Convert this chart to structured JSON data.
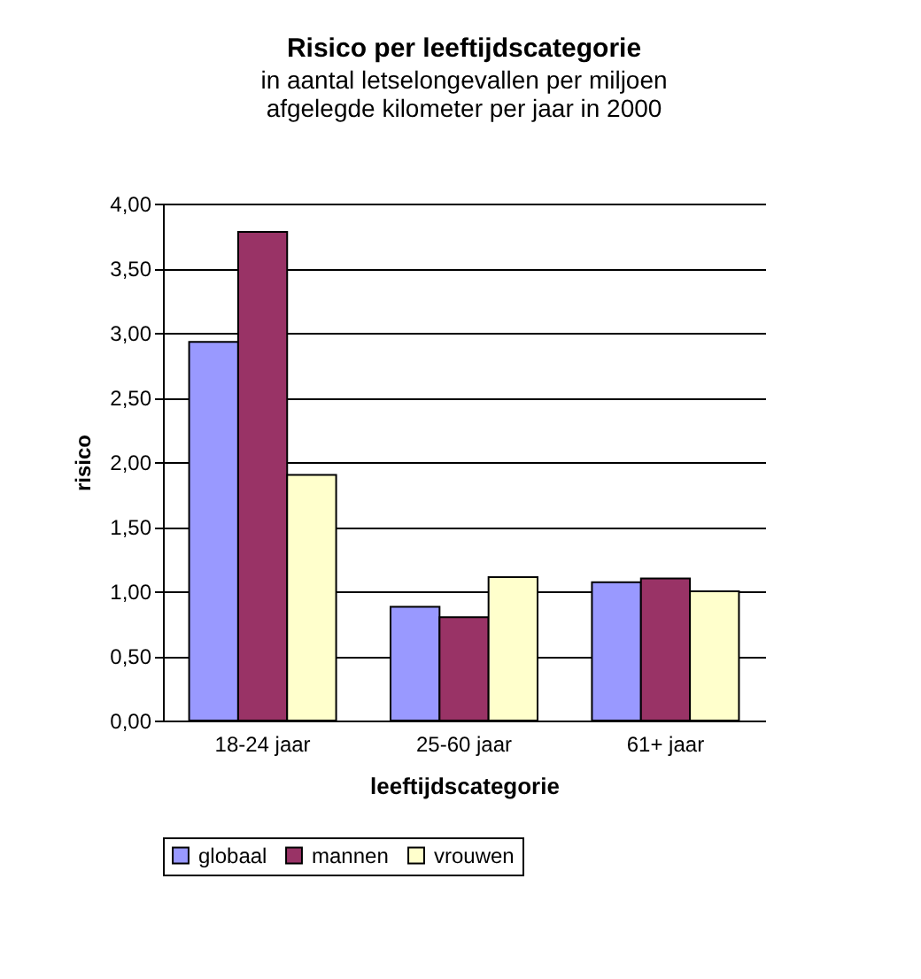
{
  "chart_data": {
    "type": "bar",
    "title": "Risico per leeftijdscategorie",
    "subtitle": "in aantal letselongevallen per miljoen afgelegde kilometer per jaar in 2000",
    "xlabel": "leeftijdscategorie",
    "ylabel": "risico",
    "categories": [
      "18-24 jaar",
      "25-60 jaar",
      "61+ jaar"
    ],
    "series": [
      {
        "name": "globaal",
        "color": "#9999ff",
        "values": [
          2.93,
          0.88,
          1.07
        ]
      },
      {
        "name": "mannen",
        "color": "#993366",
        "values": [
          3.78,
          0.8,
          1.1
        ]
      },
      {
        "name": "vrouwen",
        "color": "#ffffcc",
        "values": [
          1.9,
          1.11,
          1.0
        ]
      }
    ],
    "ylim": [
      0,
      4
    ],
    "yticks": [
      {
        "value": 0,
        "label": "0,00"
      },
      {
        "value": 0.5,
        "label": "0,50"
      },
      {
        "value": 1,
        "label": "1,00"
      },
      {
        "value": 1.5,
        "label": "1,50"
      },
      {
        "value": 2,
        "label": "2,00"
      },
      {
        "value": 2.5,
        "label": "2,50"
      },
      {
        "value": 3,
        "label": "3,00"
      },
      {
        "value": 3.5,
        "label": "3,50"
      },
      {
        "value": 4,
        "label": "4,00"
      }
    ],
    "grid": "y",
    "legend": "bottom"
  }
}
